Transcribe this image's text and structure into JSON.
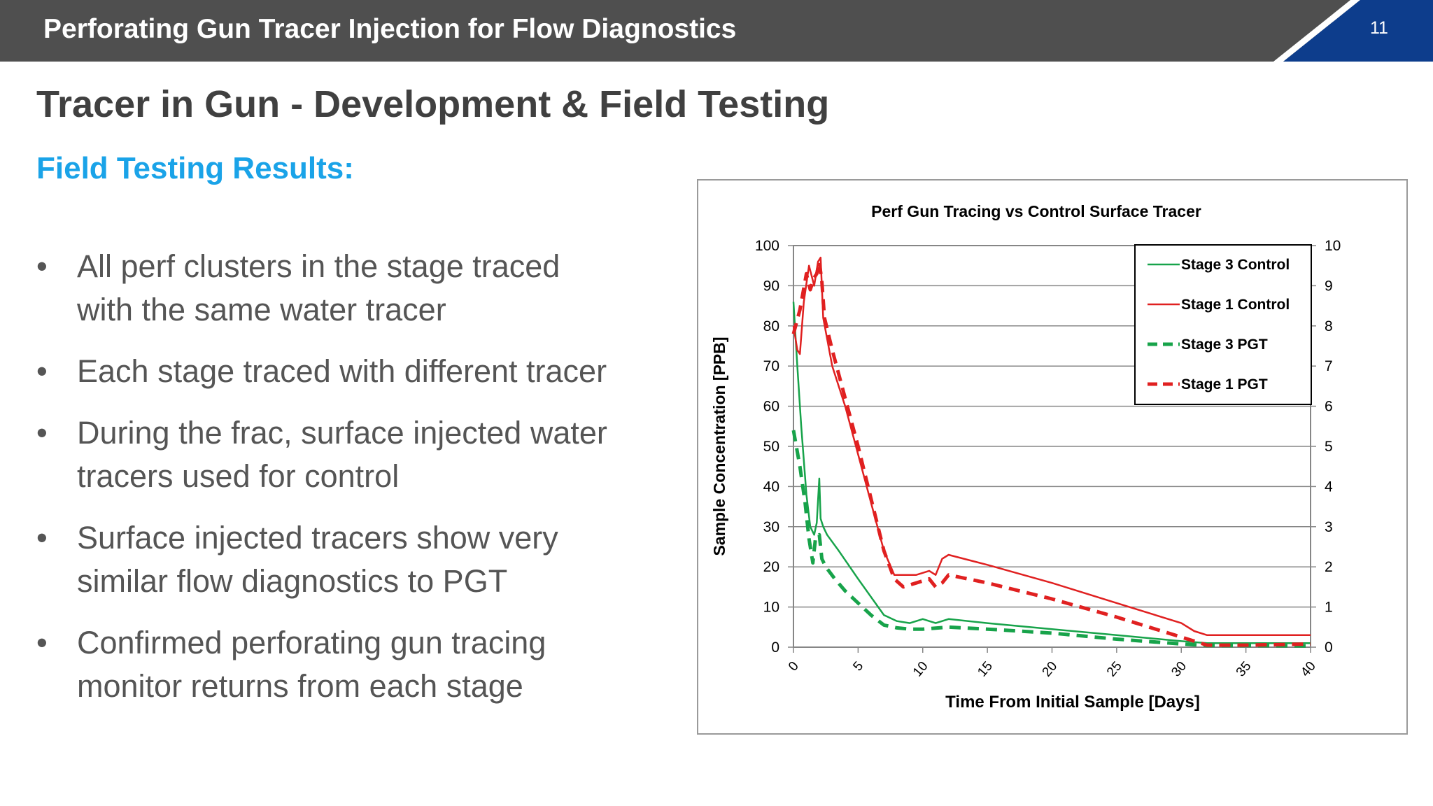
{
  "header": {
    "title": "Perforating Gun Tracer Injection for Flow Diagnostics",
    "page_number": "11"
  },
  "heading": "Tracer in Gun - Development & Field Testing",
  "subheading": "Field Testing Results:",
  "bullet_char": "•",
  "bullets": [
    {
      "line1": "All perf clusters in the stage traced",
      "line2": "with the same water tracer"
    },
    {
      "line1": "Each stage traced with different tracer",
      "line2": ""
    },
    {
      "line1": "During the frac, surface injected water",
      "line2": "tracers used for control"
    },
    {
      "line1": "Surface injected tracers show very",
      "line2": "similar flow diagnostics to PGT"
    },
    {
      "line1": "Confirmed perforating gun tracing",
      "line2": "monitor returns from each stage"
    }
  ],
  "colors": {
    "header_bg": "#4f4f4f",
    "accent_blue": "#0d3d8c",
    "subheading": "#1aa3e8",
    "stage3": "#17a34a",
    "stage1": "#e02020"
  },
  "chart_data": {
    "type": "line",
    "title": "Perf Gun Tracing vs Control Surface Tracer",
    "xlabel": "Time From Initial Sample [Days]",
    "ylabel": "Sample Concentration [PPB]",
    "xlim": [
      0,
      40
    ],
    "ylim": [
      0,
      100
    ],
    "y2lim": [
      0,
      10
    ],
    "xticks": [
      "0",
      "5",
      "10",
      "15",
      "20",
      "25",
      "30",
      "35",
      "40"
    ],
    "yticks": [
      "0",
      "10",
      "20",
      "30",
      "40",
      "50",
      "60",
      "70",
      "80",
      "90",
      "100"
    ],
    "y2ticks": [
      "0",
      "1",
      "2",
      "3",
      "4",
      "5",
      "6",
      "7",
      "8",
      "9",
      "10"
    ],
    "grid": true,
    "legend_position": "top-right",
    "series": [
      {
        "name": "Stage 3 Control",
        "color": "#17a34a",
        "style": "solid",
        "x": [
          0,
          0.3,
          0.6,
          1.0,
          1.3,
          1.6,
          1.8,
          2.0,
          2.1,
          2.3,
          2.6,
          3.5,
          5,
          7,
          8,
          9,
          10,
          11,
          12,
          15,
          20,
          25,
          30,
          32,
          35,
          40
        ],
        "y": [
          86,
          70,
          55,
          38,
          30,
          28,
          31,
          42,
          32,
          30,
          28,
          24,
          17,
          8,
          6.5,
          6,
          7,
          6,
          7,
          6,
          4.5,
          3,
          1.5,
          1,
          1,
          1
        ]
      },
      {
        "name": "Stage 1 Control",
        "color": "#e02020",
        "style": "solid",
        "x": [
          0,
          0.3,
          0.5,
          0.8,
          1.2,
          1.6,
          1.9,
          2.1,
          2.3,
          3,
          4,
          5,
          6,
          7,
          7.8,
          8.5,
          9.5,
          10.5,
          11,
          11.5,
          12,
          15,
          20,
          25,
          30,
          31,
          32,
          35,
          38,
          40
        ],
        "y": [
          80,
          74,
          73,
          86,
          95,
          90,
          96,
          97,
          82,
          70,
          60,
          48,
          36,
          24,
          18,
          18,
          18,
          19,
          18,
          22,
          23,
          20.5,
          16,
          11,
          6,
          4,
          3,
          3,
          3,
          3
        ]
      },
      {
        "name": "Stage 3 PGT",
        "color": "#17a34a",
        "style": "dashed",
        "x": [
          0,
          0.5,
          0.9,
          1.2,
          1.5,
          1.7,
          2.0,
          2.2,
          2.5,
          3.2,
          4,
          5,
          6,
          7,
          8,
          9,
          10,
          12,
          15,
          20,
          25,
          30,
          32,
          35,
          40
        ],
        "y": [
          54,
          45,
          36,
          27,
          21,
          27,
          28,
          22,
          20,
          17,
          14,
          11,
          8,
          5.5,
          4.8,
          4.5,
          4.5,
          5,
          4.5,
          3.5,
          2,
          0.8,
          0.4,
          0.4,
          0.3
        ]
      },
      {
        "name": "Stage 1 PGT",
        "color": "#e02020",
        "style": "dashed",
        "x": [
          0,
          0.5,
          1.0,
          1.3,
          1.6,
          1.8,
          2.0,
          2.2,
          2.4,
          3,
          4,
          5,
          6,
          7,
          7.8,
          8.5,
          9.5,
          10.5,
          11,
          11.5,
          12,
          15,
          20,
          25,
          30,
          32,
          35,
          40
        ],
        "y": [
          78,
          84,
          93,
          89,
          92,
          93,
          96,
          91,
          82,
          74,
          62,
          50,
          37,
          24,
          17,
          15,
          16,
          17,
          15,
          16,
          18,
          16,
          12,
          7.5,
          2.5,
          0.5,
          0.5,
          0.8
        ]
      }
    ]
  }
}
